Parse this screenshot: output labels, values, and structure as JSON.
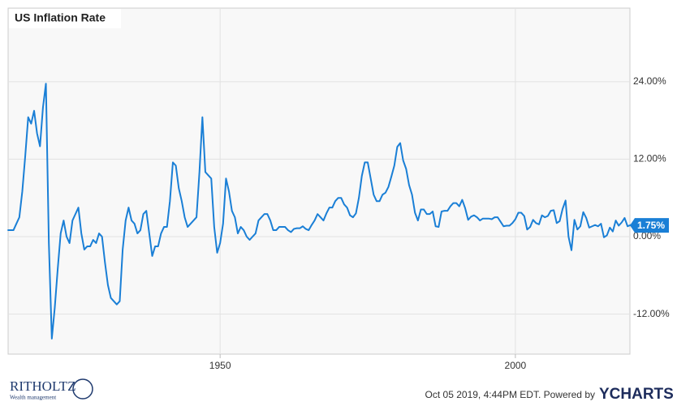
{
  "chart_data": {
    "type": "line",
    "title": "US Inflation Rate",
    "xlim": [
      1914.1,
      2019.4
    ],
    "xticks": [
      1950,
      2000
    ],
    "ylim": [
      -18.2,
      35.4
    ],
    "yticks": [
      {
        "value": -12,
        "label": "-12.00%"
      },
      {
        "value": 0,
        "label": "0.00%"
      },
      {
        "value": 12,
        "label": "12.00%"
      },
      {
        "value": 24,
        "label": "24.00%"
      }
    ],
    "grid": true,
    "series": [
      {
        "name": "US Inflation Rate",
        "color": "#1a7fd6",
        "x": [
          1914.0,
          1914.5,
          1915.0,
          1915.5,
          1916.0,
          1916.5,
          1917.0,
          1917.5,
          1918.0,
          1918.5,
          1919.0,
          1919.5,
          1920.0,
          1920.5,
          1921.0,
          1921.5,
          1922.0,
          1922.5,
          1923.0,
          1923.5,
          1924.0,
          1924.5,
          1925.0,
          1925.5,
          1926.0,
          1926.5,
          1927.0,
          1927.5,
          1928.0,
          1928.5,
          1929.0,
          1929.5,
          1930.0,
          1930.5,
          1931.0,
          1931.5,
          1932.0,
          1932.5,
          1933.0,
          1933.5,
          1934.0,
          1934.5,
          1935.0,
          1935.5,
          1936.0,
          1936.5,
          1937.0,
          1937.5,
          1938.0,
          1938.5,
          1939.0,
          1939.5,
          1940.0,
          1940.5,
          1941.0,
          1941.5,
          1942.0,
          1942.5,
          1943.0,
          1943.5,
          1944.0,
          1944.5,
          1945.0,
          1945.5,
          1946.0,
          1946.5,
          1947.0,
          1947.5,
          1948.0,
          1948.5,
          1949.0,
          1949.5,
          1950.0,
          1950.5,
          1951.0,
          1951.5,
          1952.0,
          1952.5,
          1953.0,
          1953.5,
          1954.0,
          1954.5,
          1955.0,
          1955.5,
          1956.0,
          1956.5,
          1957.0,
          1957.5,
          1958.0,
          1958.5,
          1959.0,
          1959.5,
          1960.0,
          1960.5,
          1961.0,
          1961.5,
          1962.0,
          1962.5,
          1963.0,
          1963.5,
          1964.0,
          1964.5,
          1965.0,
          1965.5,
          1966.0,
          1966.5,
          1967.0,
          1967.5,
          1968.0,
          1968.5,
          1969.0,
          1969.5,
          1970.0,
          1970.5,
          1971.0,
          1971.5,
          1972.0,
          1972.5,
          1973.0,
          1973.5,
          1974.0,
          1974.5,
          1975.0,
          1975.5,
          1976.0,
          1976.5,
          1977.0,
          1977.5,
          1978.0,
          1978.5,
          1979.0,
          1979.5,
          1980.0,
          1980.5,
          1981.0,
          1981.5,
          1982.0,
          1982.5,
          1983.0,
          1983.5,
          1984.0,
          1984.5,
          1985.0,
          1985.5,
          1986.0,
          1986.5,
          1987.0,
          1987.5,
          1988.0,
          1988.5,
          1989.0,
          1989.5,
          1990.0,
          1990.5,
          1991.0,
          1991.5,
          1992.0,
          1992.5,
          1993.0,
          1993.5,
          1994.0,
          1994.5,
          1995.0,
          1995.5,
          1996.0,
          1996.5,
          1997.0,
          1997.5,
          1998.0,
          1998.5,
          1999.0,
          1999.5,
          2000.0,
          2000.5,
          2001.0,
          2001.5,
          2002.0,
          2002.5,
          2003.0,
          2003.5,
          2004.0,
          2004.5,
          2005.0,
          2005.5,
          2006.0,
          2006.5,
          2007.0,
          2007.5,
          2008.0,
          2008.5,
          2009.0,
          2009.5,
          2010.0,
          2010.5,
          2011.0,
          2011.5,
          2012.0,
          2012.5,
          2013.0,
          2013.5,
          2014.0,
          2014.5,
          2015.0,
          2015.5,
          2016.0,
          2016.5,
          2017.0,
          2017.5,
          2018.0,
          2018.5,
          2019.0,
          2019.5,
          2019.75
        ],
        "values": [
          1.0,
          1.0,
          1.0,
          2.0,
          3.0,
          7.0,
          12.5,
          18.5,
          17.5,
          19.5,
          16.0,
          14.0,
          20.0,
          23.7,
          -1.0,
          -15.8,
          -11.0,
          -5.0,
          0.5,
          2.5,
          0.0,
          -1.0,
          2.5,
          3.5,
          4.5,
          0.5,
          -2.0,
          -1.5,
          -1.5,
          -0.5,
          -1.0,
          0.5,
          0.0,
          -4.0,
          -7.5,
          -9.5,
          -10.0,
          -10.5,
          -10.0,
          -2.0,
          2.5,
          4.5,
          2.5,
          2.0,
          0.5,
          1.0,
          3.5,
          4.0,
          0.5,
          -3.0,
          -1.5,
          -1.5,
          0.5,
          1.5,
          1.5,
          5.5,
          11.5,
          11.0,
          7.5,
          5.5,
          3.0,
          1.5,
          2.0,
          2.5,
          3.0,
          10.0,
          18.5,
          10.0,
          9.5,
          9.0,
          1.5,
          -2.5,
          -1.0,
          2.0,
          9.0,
          7.0,
          4.0,
          3.0,
          0.5,
          1.5,
          1.0,
          0.0,
          -0.5,
          0.0,
          0.5,
          2.5,
          3.0,
          3.5,
          3.5,
          2.5,
          1.0,
          1.0,
          1.5,
          1.5,
          1.5,
          1.0,
          0.7,
          1.2,
          1.3,
          1.3,
          1.6,
          1.2,
          1.0,
          1.8,
          2.5,
          3.5,
          3.0,
          2.5,
          3.6,
          4.5,
          4.5,
          5.5,
          6.0,
          6.0,
          5.0,
          4.5,
          3.3,
          3.0,
          3.6,
          6.0,
          9.4,
          11.5,
          11.5,
          9.0,
          6.5,
          5.5,
          5.5,
          6.5,
          6.8,
          7.7,
          9.3,
          11.0,
          13.9,
          14.5,
          11.8,
          10.5,
          8.0,
          6.5,
          3.7,
          2.5,
          4.2,
          4.2,
          3.5,
          3.5,
          3.9,
          1.6,
          1.5,
          3.9,
          4.0,
          4.0,
          4.7,
          5.2,
          5.2,
          4.7,
          5.7,
          4.4,
          2.6,
          3.1,
          3.3,
          3.0,
          2.5,
          2.8,
          2.8,
          2.8,
          2.7,
          3.0,
          3.0,
          2.3,
          1.6,
          1.7,
          1.7,
          2.1,
          2.7,
          3.7,
          3.7,
          3.2,
          1.1,
          1.5,
          2.6,
          2.1,
          1.9,
          3.3,
          3.0,
          3.2,
          4.0,
          4.1,
          2.1,
          2.4,
          4.3,
          5.6,
          0.0,
          -2.1,
          2.6,
          1.1,
          1.6,
          3.8,
          2.9,
          1.4,
          1.6,
          1.8,
          1.6,
          2.0,
          -0.1,
          0.2,
          1.4,
          0.8,
          2.5,
          1.7,
          2.2,
          2.9,
          1.6,
          1.8,
          1.75
        ]
      }
    ],
    "current_value": {
      "value": 1.75,
      "label": "1.75%"
    }
  },
  "footer": {
    "timestamp": "Oct 05 2019, 4:44PM EDT.  Powered by",
    "brand": "YCHARTS",
    "logo": "RITHOLTZ",
    "logo_sub": "Wealth management"
  }
}
